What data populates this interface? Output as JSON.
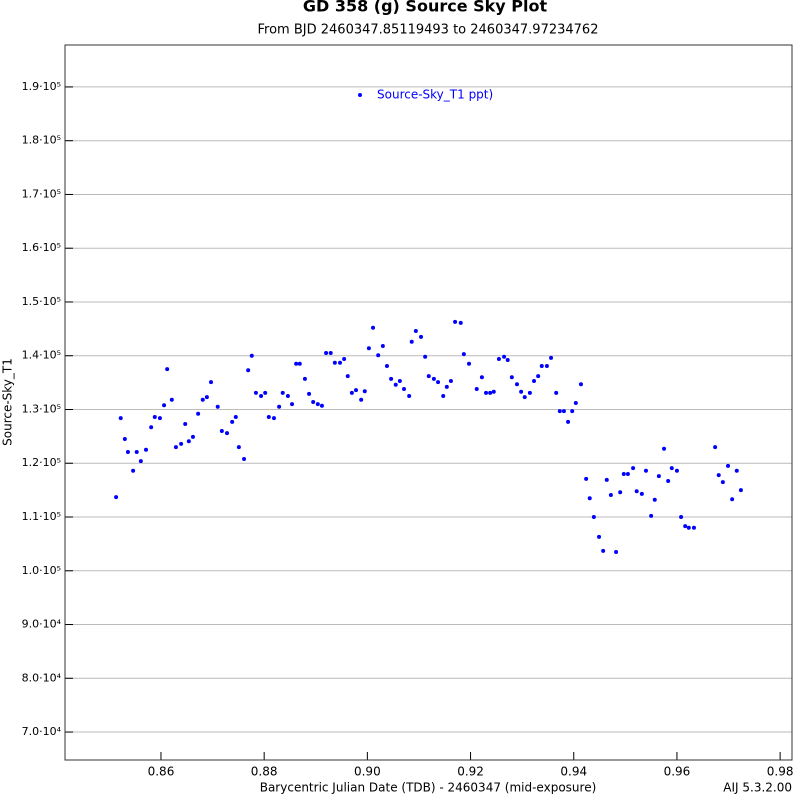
{
  "chart_data": {
    "type": "scatter",
    "title": "GD 358 (g) Source Sky Plot",
    "subtitle": "From BJD 2460347.85119493 to 2460347.97234762",
    "x_label": "Barycentric Julian Date (TDB) - 2460347 (mid-exposure)",
    "y_label": "Source-Sky_T1",
    "footer": "AIJ 5.3.2.00",
    "xlim": [
      0.8414,
      0.9823
    ],
    "ylim": [
      64800,
      197800
    ],
    "xticks": [
      0.86,
      0.88,
      {
        "value": 0.9,
        "label": "0.90"
      },
      0.92,
      0.94,
      0.96,
      0.98
    ],
    "yticks": [
      {
        "value": 70000,
        "label": "7.0·10⁴"
      },
      {
        "value": 80000,
        "label": "8.0·10⁴"
      },
      {
        "value": 90000,
        "label": "9.0·10⁴"
      },
      {
        "value": 100000,
        "label": "1.0·10⁵"
      },
      {
        "value": 110000,
        "label": "1.1·10⁵"
      },
      {
        "value": 120000,
        "label": "1.2·10⁵"
      },
      {
        "value": 130000,
        "label": "1.3·10⁵"
      },
      {
        "value": 140000,
        "label": "1.4·10⁵"
      },
      {
        "value": 150000,
        "label": "1.5·10⁵"
      },
      {
        "value": 160000,
        "label": "1.6·10⁵"
      },
      {
        "value": 170000,
        "label": "1.7·10⁵"
      },
      {
        "value": 180000,
        "label": "1.8·10⁵"
      },
      {
        "value": 190000,
        "label": "1.9·10⁵"
      }
    ],
    "grid": true,
    "legend": "top",
    "series": [
      {
        "name": "Source-Sky_T1 ppt)",
        "color": "#0000ff",
        "x": [
          0.8513,
          0.8522,
          0.853,
          0.8536,
          0.8546,
          0.8553,
          0.8561,
          0.8571,
          0.8581,
          0.8588,
          0.8598,
          0.8606,
          0.8612,
          0.8621,
          0.8629,
          0.8639,
          0.8647,
          0.8654,
          0.8662,
          0.8672,
          0.8681,
          0.8689,
          0.8697,
          0.871,
          0.8718,
          0.8728,
          0.8738,
          0.8745,
          0.8751,
          0.8761,
          0.8769,
          0.8776,
          0.8784,
          0.8794,
          0.8802,
          0.8809,
          0.8819,
          0.8829,
          0.8836,
          0.8846,
          0.8854,
          0.8862,
          0.8869,
          0.8879,
          0.8887,
          0.8895,
          0.8904,
          0.8912,
          0.892,
          0.8929,
          0.8937,
          0.8947,
          0.8955,
          0.8962,
          0.897,
          0.8978,
          0.8988,
          0.8995,
          0.9003,
          0.9011,
          0.9021,
          0.903,
          0.9038,
          0.9046,
          0.9055,
          0.9063,
          0.9071,
          0.9081,
          0.9086,
          0.9094,
          0.9104,
          0.9112,
          0.9119,
          0.9129,
          0.9137,
          0.9147,
          0.9154,
          0.9162,
          0.917,
          0.9181,
          0.9187,
          0.9197,
          0.9212,
          0.9222,
          0.923,
          0.9238,
          0.9245,
          0.9255,
          0.9265,
          0.9272,
          0.928,
          0.929,
          0.9298,
          0.9305,
          0.9315,
          0.9323,
          0.9331,
          0.9338,
          0.9348,
          0.9356,
          0.9366,
          0.9373,
          0.9381,
          0.9389,
          0.9397,
          0.9404,
          0.9414,
          0.9424,
          0.9431,
          0.9439,
          0.9449,
          0.9457,
          0.9464,
          0.9472,
          0.9482,
          0.949,
          0.9497,
          0.9505,
          0.9515,
          0.9522,
          0.9532,
          0.954,
          0.955,
          0.9557,
          0.9565,
          0.9575,
          0.9583,
          0.959,
          0.96,
          0.9608,
          0.9616,
          0.9623,
          0.9633,
          0.9674,
          0.9681,
          0.9689,
          0.9699,
          0.9707,
          0.9716,
          0.9724
        ],
        "values": [
          113700,
          128400,
          124500,
          122100,
          118600,
          122100,
          120400,
          122500,
          126700,
          128600,
          128400,
          130800,
          137500,
          131800,
          123000,
          123600,
          127300,
          124100,
          124900,
          129200,
          131800,
          132300,
          135100,
          130500,
          126000,
          125600,
          127700,
          128600,
          123000,
          120800,
          137300,
          140000,
          133100,
          132500,
          133100,
          128600,
          128400,
          130500,
          133100,
          132500,
          131000,
          138500,
          138500,
          135700,
          132900,
          131400,
          131000,
          130700,
          140500,
          140500,
          138700,
          138700,
          139400,
          136200,
          133100,
          133600,
          131800,
          133400,
          141400,
          145200,
          140100,
          141800,
          138100,
          135700,
          134600,
          135300,
          133800,
          132500,
          142600,
          144600,
          143500,
          139800,
          136200,
          135700,
          135100,
          132500,
          134200,
          135300,
          146300,
          146100,
          140300,
          138500,
          133800,
          136000,
          133100,
          133100,
          133300,
          139400,
          139800,
          139200,
          136000,
          134700,
          133300,
          132300,
          133100,
          135300,
          136200,
          138100,
          138100,
          139600,
          133100,
          129700,
          129700,
          127700,
          129700,
          131200,
          134700,
          117100,
          113500,
          110000,
          106300,
          103700,
          116900,
          114100,
          103500,
          114600,
          118000,
          118000,
          119100,
          114800,
          114300,
          118600,
          110200,
          113200,
          117600,
          122700,
          116700,
          119100,
          118600,
          110000,
          108300,
          108000,
          108000,
          123000,
          117800,
          116500,
          119500,
          113300,
          118600,
          115000
        ]
      }
    ]
  }
}
